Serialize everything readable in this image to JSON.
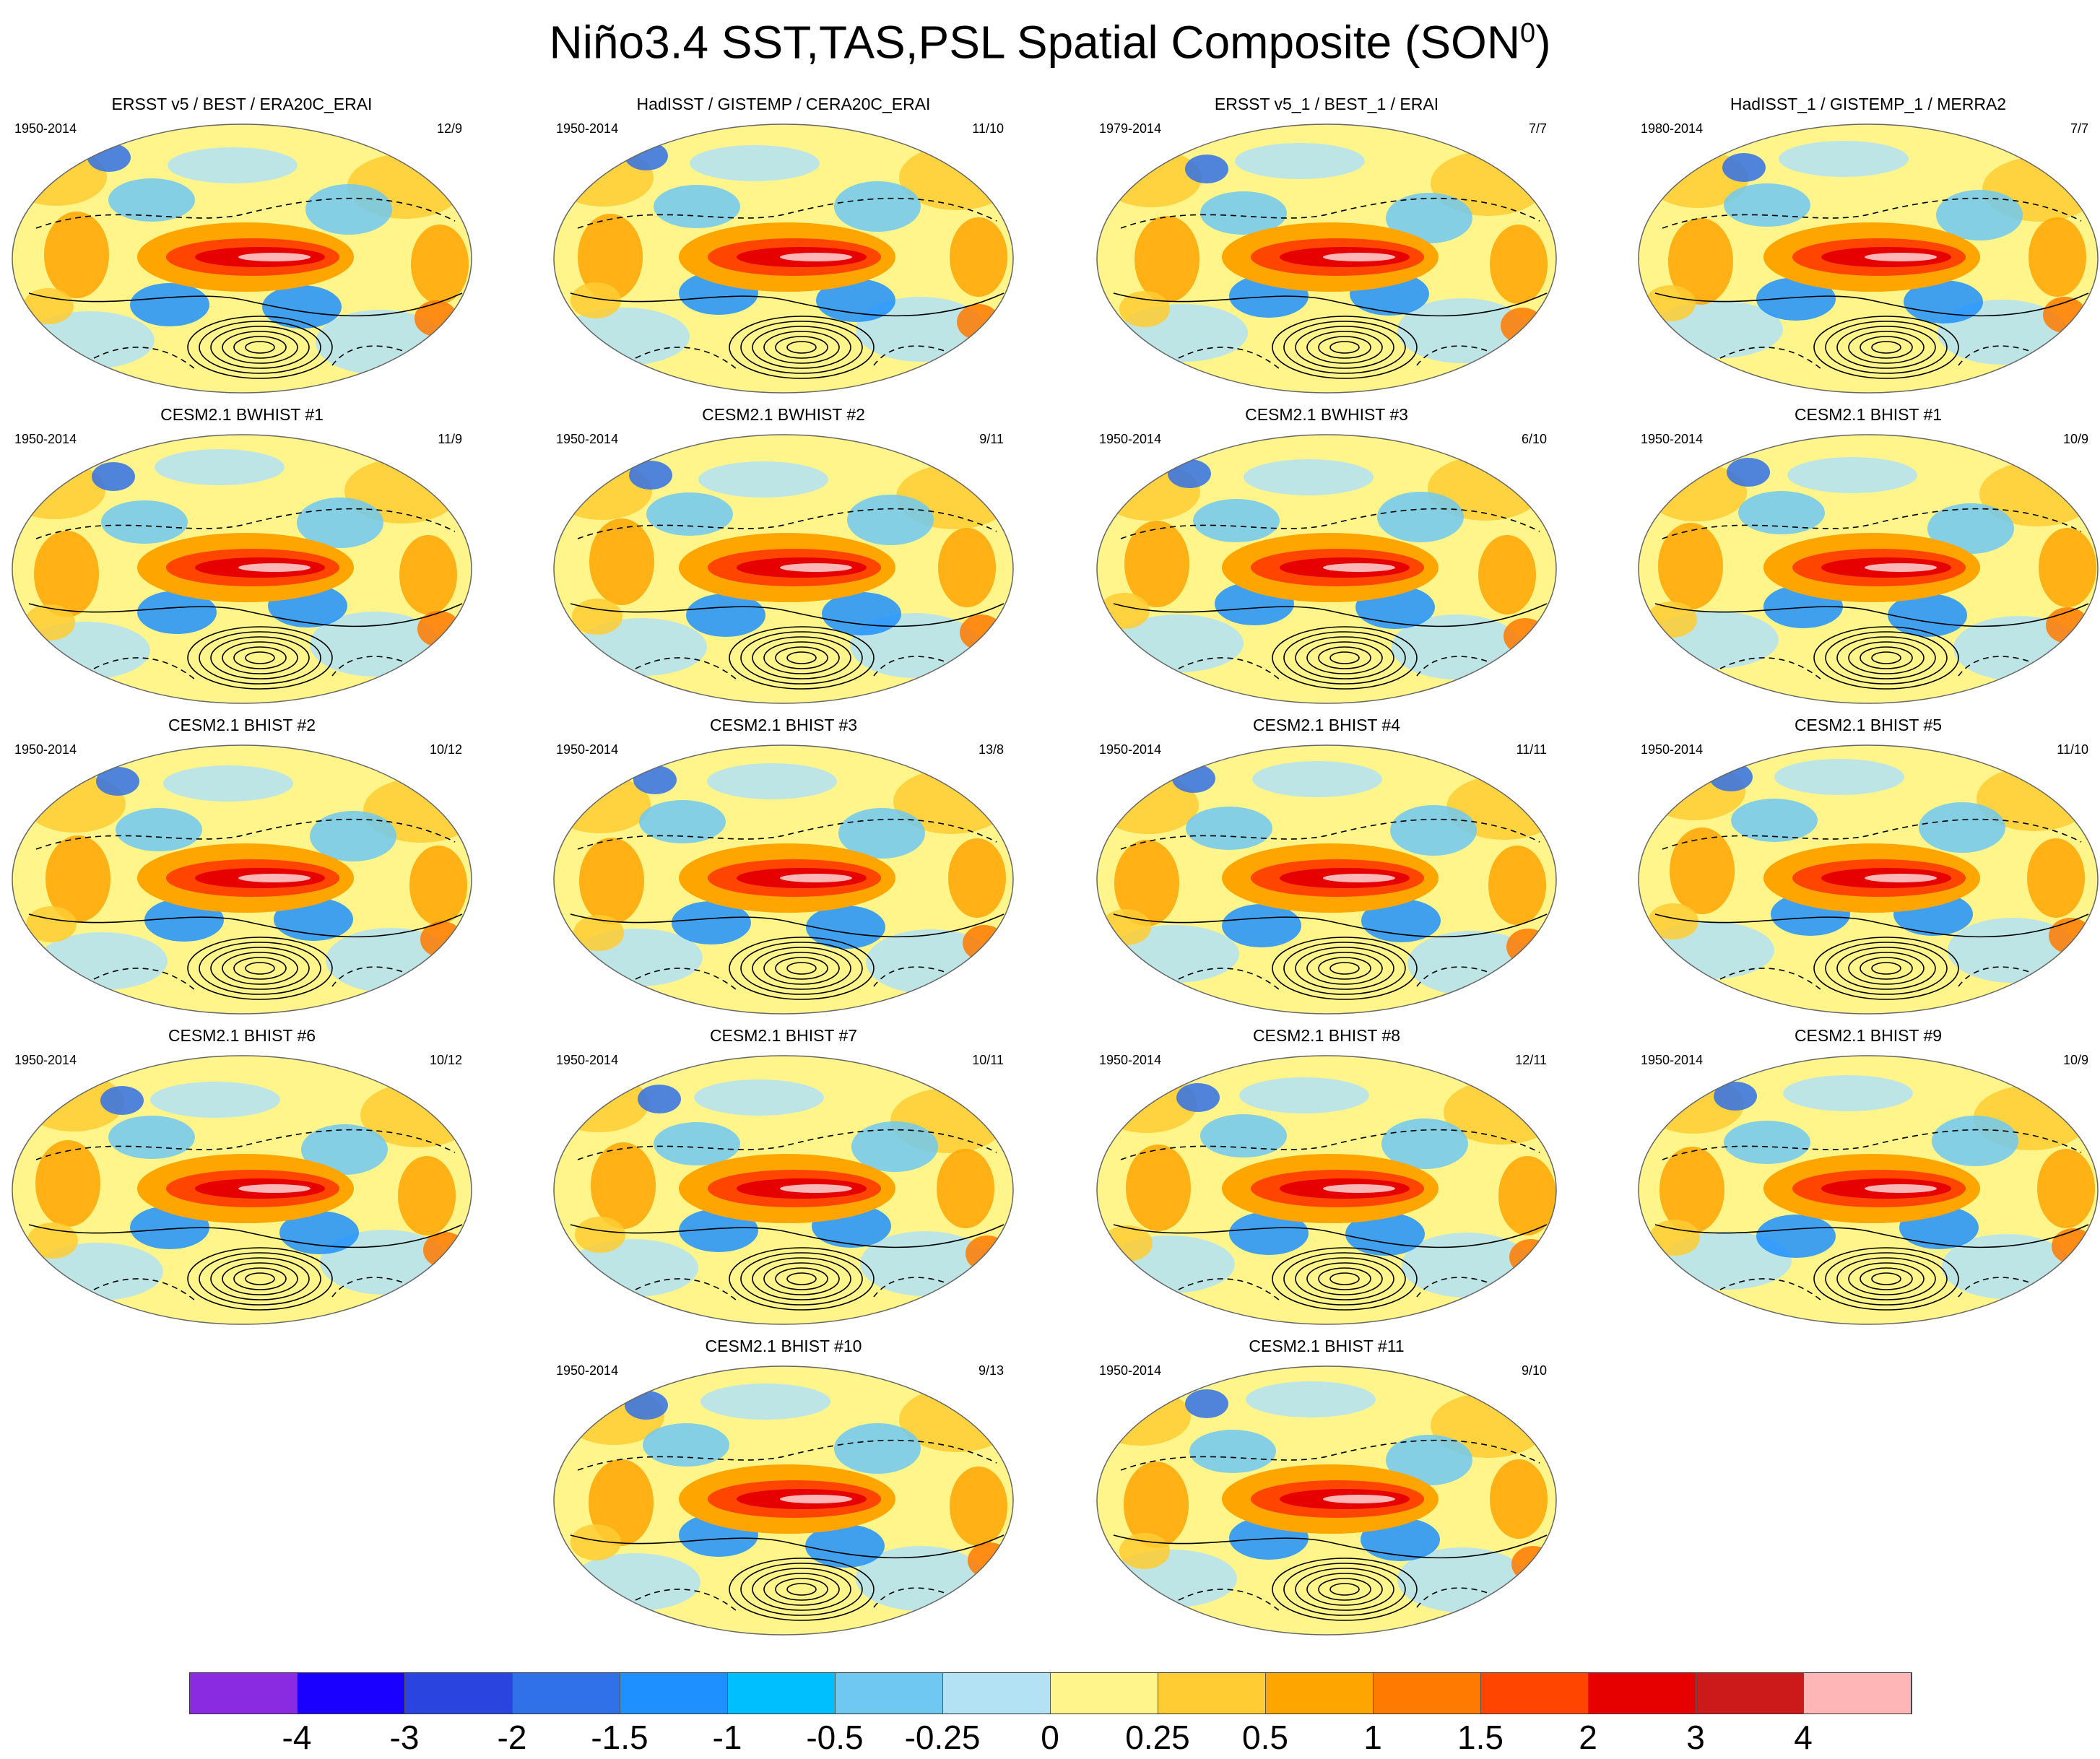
{
  "title": {
    "main": "Niño3.4 SST,TAS,PSL Spatial Composite (SON",
    "sup": "0",
    "close": ")"
  },
  "colorbar": {
    "colors": [
      "#8a2be2",
      "#1a00ff",
      "#2a44e0",
      "#3070e8",
      "#1e90ff",
      "#00bfff",
      "#6fc8f2",
      "#b3e2f5",
      "#fff58a",
      "#ffcc33",
      "#ffa500",
      "#ff7a00",
      "#ff4500",
      "#e60000",
      "#cc1a1a",
      "#ffb6b6"
    ],
    "labels": [
      "-4",
      "-3",
      "-2",
      "-1.5",
      "-1",
      "-0.5",
      "-0.25",
      "0",
      "0.25",
      "0.5",
      "1",
      "1.5",
      "2",
      "3",
      "4"
    ]
  },
  "panels": [
    {
      "title": "ERSST v5 / BEST / ERA20C_ERAI",
      "years": "1950-2014",
      "count": "12/9"
    },
    {
      "title": "HadISST / GISTEMP / CERA20C_ERAI",
      "years": "1950-2014",
      "count": "11/10"
    },
    {
      "title": "ERSST v5_1 / BEST_1 / ERAI",
      "years": "1979-2014",
      "count": "7/7"
    },
    {
      "title": "HadISST_1 / GISTEMP_1 / MERRA2",
      "years": "1980-2014",
      "count": "7/7"
    },
    {
      "title": "CESM2.1 BWHIST #1",
      "years": "1950-2014",
      "count": "11/9"
    },
    {
      "title": "CESM2.1 BWHIST #2",
      "years": "1950-2014",
      "count": "9/11"
    },
    {
      "title": "CESM2.1 BWHIST #3",
      "years": "1950-2014",
      "count": "6/10"
    },
    {
      "title": "CESM2.1 BHIST #1",
      "years": "1950-2014",
      "count": "10/9"
    },
    {
      "title": "CESM2.1 BHIST #2",
      "years": "1950-2014",
      "count": "10/12"
    },
    {
      "title": "CESM2.1 BHIST #3",
      "years": "1950-2014",
      "count": "13/8"
    },
    {
      "title": "CESM2.1 BHIST #4",
      "years": "1950-2014",
      "count": "11/11"
    },
    {
      "title": "CESM2.1 BHIST #5",
      "years": "1950-2014",
      "count": "11/10"
    },
    {
      "title": "CESM2.1 BHIST #6",
      "years": "1950-2014",
      "count": "10/12"
    },
    {
      "title": "CESM2.1 BHIST #7",
      "years": "1950-2014",
      "count": "10/11"
    },
    {
      "title": "CESM2.1 BHIST #8",
      "years": "1950-2014",
      "count": "12/11"
    },
    {
      "title": "CESM2.1 BHIST #9",
      "years": "1950-2014",
      "count": "10/9"
    },
    {
      "title": "CESM2.1 BHIST #10",
      "years": "1950-2014",
      "count": "9/13"
    },
    {
      "title": "CESM2.1 BHIST #11",
      "years": "1950-2014",
      "count": "9/10"
    }
  ]
}
